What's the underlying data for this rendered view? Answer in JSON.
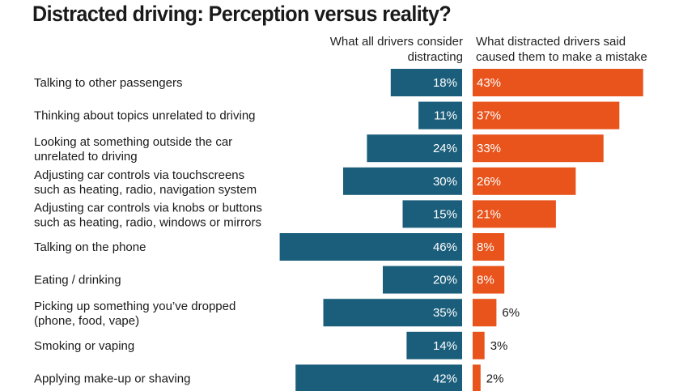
{
  "chart_data": {
    "type": "bar",
    "orientation": "horizontal-diverging",
    "title": "Distracted driving: Perception versus reality?",
    "xlabel": "",
    "ylabel": "",
    "unit": "%",
    "grid": false,
    "legend_placement": "top-right",
    "categories": [
      [
        "Talking to other passengers"
      ],
      [
        "Thinking about topics unrelated to driving"
      ],
      [
        "Looking at something outside the car",
        "unrelated to driving"
      ],
      [
        "Adjusting car controls via touchscreens",
        "such as heating, radio, navigation system"
      ],
      [
        "Adjusting car controls via knobs or buttons",
        "such as heating, radio, windows or mirrors"
      ],
      [
        "Talking on the phone"
      ],
      [
        "Eating / drinking"
      ],
      [
        "Picking up something you’ve dropped",
        "(phone, food, vape)"
      ],
      [
        "Smoking or vaping"
      ],
      [
        "Applying make-up or shaving"
      ]
    ],
    "series": [
      {
        "name": "What all drivers consider distracting",
        "name_lines": [
          "What all drivers consider",
          "distracting"
        ],
        "color": "#1b5e7b",
        "direction": "left",
        "values": [
          18,
          11,
          24,
          30,
          15,
          46,
          20,
          35,
          14,
          42
        ]
      },
      {
        "name": "What distracted drivers said caused them to make a mistake",
        "name_lines": [
          "What distracted drivers said",
          "caused them to make a mistake"
        ],
        "color": "#e8541c",
        "direction": "right",
        "values": [
          43,
          37,
          33,
          26,
          21,
          8,
          8,
          6,
          3,
          2
        ]
      }
    ],
    "xlim": [
      0,
      46
    ]
  }
}
